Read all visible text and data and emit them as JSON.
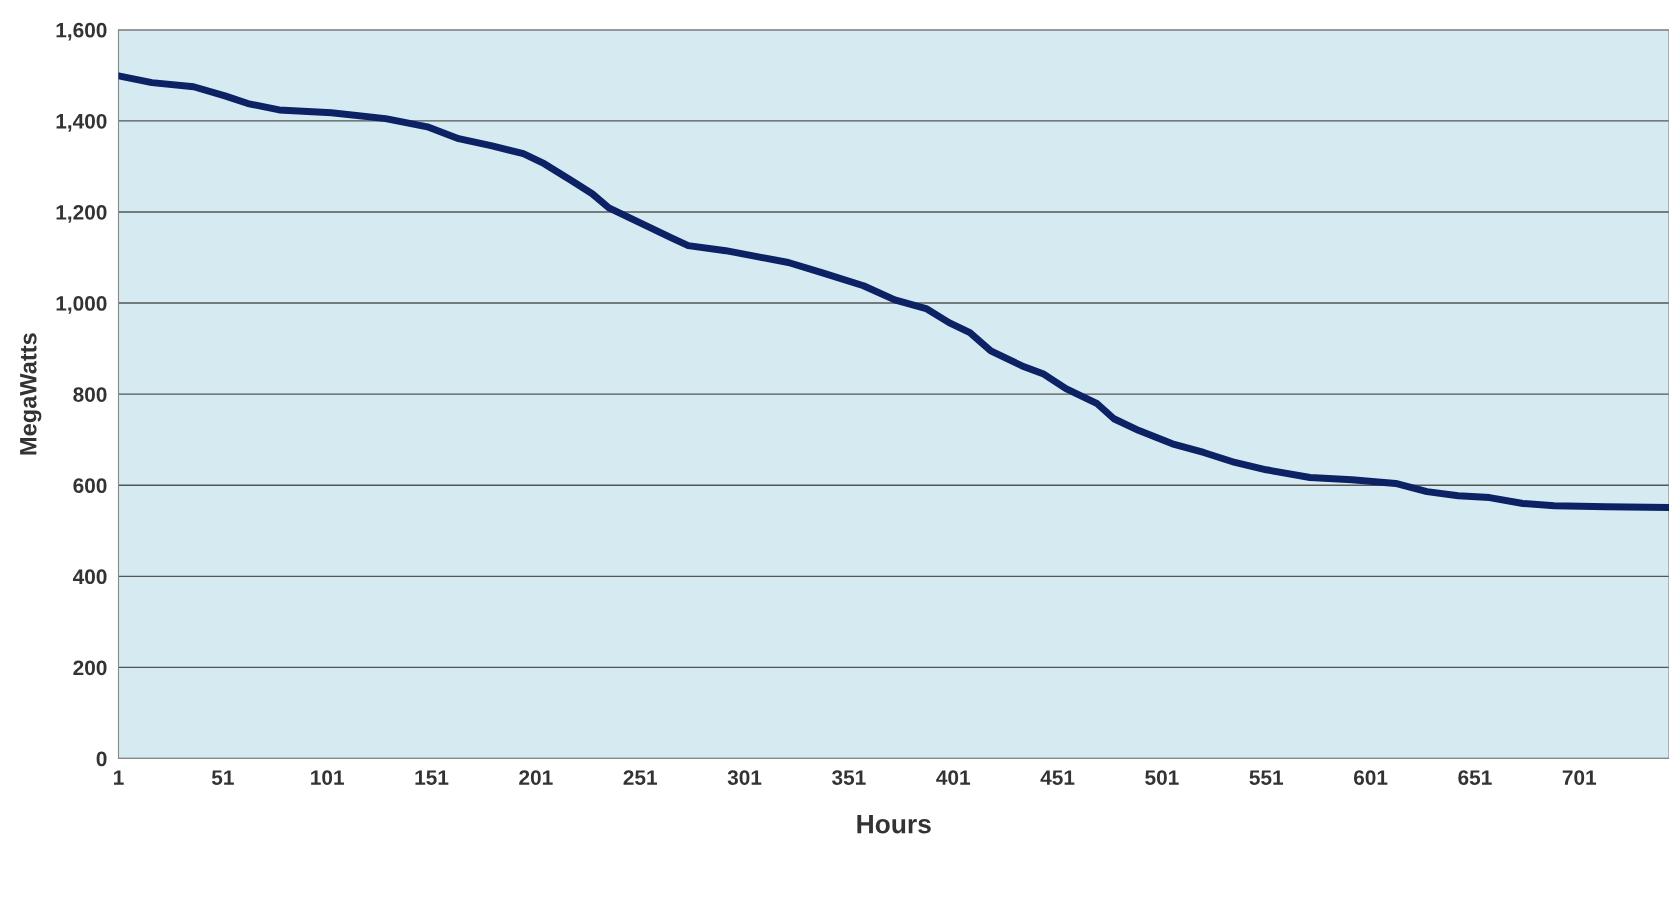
{
  "chart_data": {
    "type": "line",
    "xlabel": "Hours",
    "ylabel": "MegaWatts",
    "series": [
      {
        "color": "#0d2265",
        "x": [
          1,
          17,
          37,
          52,
          63,
          78,
          103,
          129,
          149,
          164,
          180,
          195,
          205,
          218,
          228,
          236,
          251,
          266,
          274,
          292,
          307,
          322,
          338,
          358,
          373,
          388,
          399,
          409,
          419,
          434,
          444,
          455,
          470,
          478,
          490,
          506,
          521,
          536,
          551,
          572,
          592,
          613,
          628,
          643,
          658,
          674,
          689,
          714,
          744
        ],
        "values": [
          1499,
          1484,
          1475,
          1455,
          1438,
          1424,
          1418,
          1405,
          1387,
          1361,
          1345,
          1328,
          1306,
          1269,
          1240,
          1209,
          1176,
          1143,
          1126,
          1115,
          1102,
          1089,
          1067,
          1038,
          1007,
          988,
          957,
          935,
          895,
          862,
          845,
          812,
          779,
          746,
          720,
          691,
          672,
          650,
          634,
          617,
          612,
          604,
          586,
          577,
          573,
          560,
          555,
          553,
          551
        ]
      }
    ],
    "xlim": [
      1,
      744
    ],
    "xticks": [
      1,
      51,
      101,
      151,
      201,
      251,
      301,
      351,
      401,
      451,
      501,
      551,
      601,
      651,
      701
    ],
    "ylim": [
      0,
      1600
    ],
    "yticks": [
      {
        "value": 0,
        "label": "0"
      },
      {
        "value": 200,
        "label": "200"
      },
      {
        "value": 400,
        "label": "400"
      },
      {
        "value": 600,
        "label": "600"
      },
      {
        "value": 800,
        "label": "800"
      },
      {
        "value": 1000,
        "label": "1,000"
      },
      {
        "value": 1200,
        "label": "1,200"
      },
      {
        "value": 1400,
        "label": "1,400"
      },
      {
        "value": 1600,
        "label": "1,600"
      }
    ],
    "grid": "y",
    "marker": "none",
    "line_style": "solid"
  }
}
